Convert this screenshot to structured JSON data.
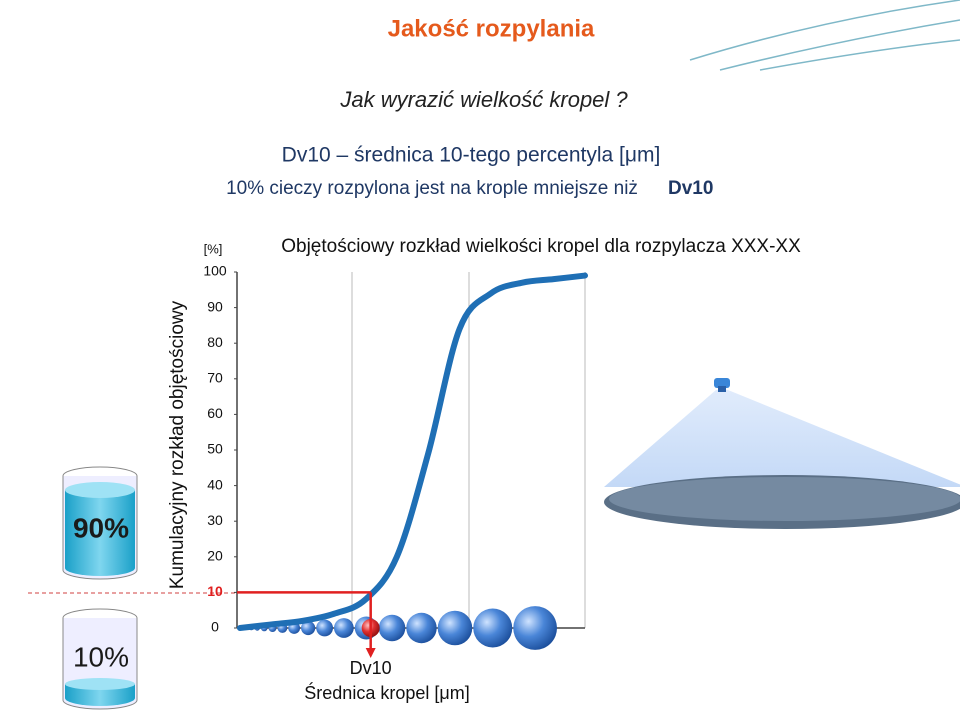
{
  "header": {
    "title": "Jakość rozpylania",
    "question": "Jak wyrazić wielkość kropel ?",
    "definition": "Dv10 – średnica 10-tego percentyla [μm]",
    "explanation": "10% cieczy rozpylona jest na krople mniejsze niż",
    "explanation_term": "Dv10"
  },
  "beakers": [
    "90%",
    "10%"
  ],
  "chart_data": {
    "type": "line",
    "title": "Objętościowy rozkład wielkości kropel dla rozpylacza XXX-XX",
    "y_unit": "[%]",
    "y_label": "Kumulacyjny rozkład objętościowy",
    "x_label": "Średnica kropel [μm]",
    "categories": [
      null,
      null,
      null,
      null,
      null,
      null,
      null,
      null,
      null,
      null,
      null,
      null
    ],
    "series": [
      {
        "color": "#1f6fb5",
        "values": [
          0,
          1,
          2,
          4,
          8,
          20,
          49,
          84,
          94,
          97,
          98,
          99
        ]
      }
    ],
    "ylim": [
      0,
      100
    ],
    "yticks": [
      0,
      10,
      20,
      30,
      40,
      50,
      60,
      70,
      80,
      90,
      100
    ],
    "reference": {
      "value": 10,
      "label": "Dv10",
      "color": "#e02020"
    }
  }
}
